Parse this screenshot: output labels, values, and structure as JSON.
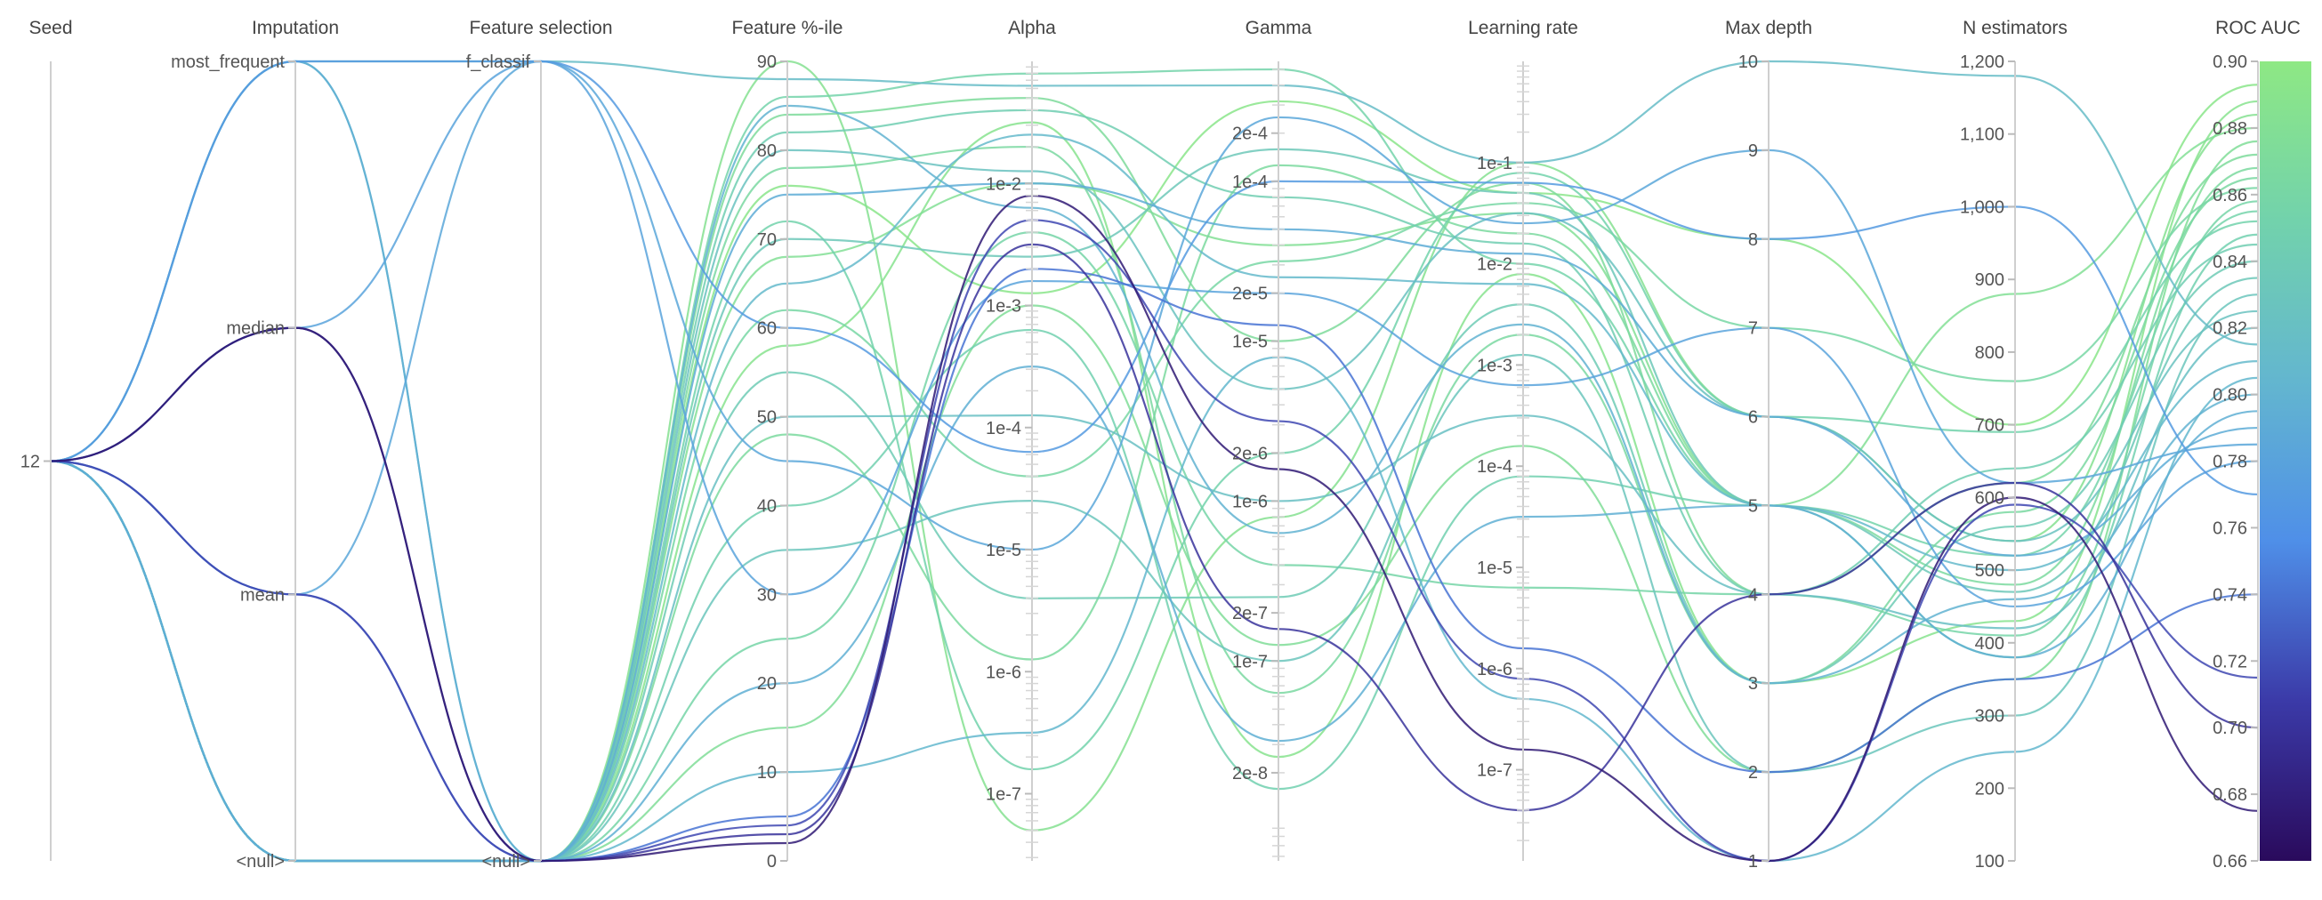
{
  "chart_data": {
    "type": "parallel_coordinates",
    "axes": [
      {
        "key": "seed",
        "title": "Seed",
        "kind": "cat",
        "ticks": [
          {
            "label": "12",
            "v": 0.5
          }
        ]
      },
      {
        "key": "imputation",
        "title": "Imputation",
        "kind": "cat",
        "ticks": [
          {
            "label": "most_frequent",
            "v": 1.0
          },
          {
            "label": "median",
            "v": 0.6667
          },
          {
            "label": "mean",
            "v": 0.3333
          },
          {
            "label": "<null>",
            "v": 0.0
          }
        ]
      },
      {
        "key": "feature_selection",
        "title": "Feature selection",
        "kind": "cat",
        "ticks": [
          {
            "label": "f_classif",
            "v": 1.0
          },
          {
            "label": "<null>",
            "v": 0.0
          }
        ]
      },
      {
        "key": "feature_pct",
        "title": "Feature %-ile",
        "kind": "lin",
        "range": [
          0,
          90
        ],
        "ticks": [
          "0",
          "10",
          "20",
          "30",
          "40",
          "50",
          "60",
          "70",
          "80",
          "90"
        ]
      },
      {
        "key": "alpha",
        "title": "Alpha",
        "kind": "log",
        "range": [
          -7.55,
          -1.0
        ],
        "ticks": [
          {
            "label": "1e-2",
            "exp": -2
          },
          {
            "label": "1e-3",
            "exp": -3
          },
          {
            "label": "1e-4",
            "exp": -4
          },
          {
            "label": "1e-5",
            "exp": -5
          },
          {
            "label": "1e-6",
            "exp": -6
          },
          {
            "label": "1e-7",
            "exp": -7
          }
        ]
      },
      {
        "key": "gamma",
        "title": "Gamma",
        "kind": "log",
        "range": [
          -8.25,
          -3.25
        ],
        "ticks": [
          {
            "label": "2e-4",
            "exp": -3.699
          },
          {
            "label": "1e-4",
            "exp": -4
          },
          {
            "label": "2e-5",
            "exp": -4.699
          },
          {
            "label": "1e-5",
            "exp": -5
          },
          {
            "label": "2e-6",
            "exp": -5.699
          },
          {
            "label": "1e-6",
            "exp": -6
          },
          {
            "label": "2e-7",
            "exp": -6.699
          },
          {
            "label": "1e-7",
            "exp": -7
          },
          {
            "label": "2e-8",
            "exp": -7.699
          }
        ]
      },
      {
        "key": "learning_rate",
        "title": "Learning rate",
        "kind": "log",
        "range": [
          -7.9,
          0.0
        ],
        "ticks": [
          {
            "label": "1e-1",
            "exp": -1
          },
          {
            "label": "1e-2",
            "exp": -2
          },
          {
            "label": "1e-3",
            "exp": -3
          },
          {
            "label": "1e-4",
            "exp": -4
          },
          {
            "label": "1e-5",
            "exp": -5
          },
          {
            "label": "1e-6",
            "exp": -6
          },
          {
            "label": "1e-7",
            "exp": -7
          }
        ]
      },
      {
        "key": "max_depth",
        "title": "Max depth",
        "kind": "lin",
        "range": [
          1,
          10
        ],
        "ticks": [
          "1",
          "2",
          "3",
          "4",
          "5",
          "6",
          "7",
          "8",
          "9",
          "10"
        ]
      },
      {
        "key": "n_estimators",
        "title": "N estimators",
        "kind": "lin",
        "range": [
          100,
          1200
        ],
        "ticks": [
          "100",
          "200",
          "300",
          "400",
          "500",
          "600",
          "700",
          "800",
          "900",
          "1,000",
          "1,100",
          "1,200"
        ]
      },
      {
        "key": "roc_auc",
        "title": "ROC AUC",
        "kind": "lin",
        "range": [
          0.66,
          0.9
        ],
        "ticks": [
          "0.66",
          "0.68",
          "0.70",
          "0.72",
          "0.74",
          "0.76",
          "0.78",
          "0.80",
          "0.82",
          "0.84",
          "0.86",
          "0.88",
          "0.90"
        ]
      }
    ],
    "color_scale": {
      "metric": "roc_auc",
      "min": 0.66,
      "max": 0.9,
      "stops": [
        "#2a0a5c",
        "#3b3aa8",
        "#4f8fe8",
        "#63b6cf",
        "#72d2ac",
        "#8ee884"
      ]
    },
    "runs": [
      [
        12,
        "median",
        "<null>",
        2,
        -2.1,
        -5.8,
        -6.8,
        1,
        600,
        0.675
      ],
      [
        12,
        "median",
        "<null>",
        3,
        -2.5,
        -6.8,
        -7.4,
        4,
        620,
        0.7
      ],
      [
        12,
        "mean",
        "<null>",
        4,
        -2.3,
        -5.5,
        -6.1,
        1,
        590,
        0.715
      ],
      [
        12,
        "mean",
        "<null>",
        5,
        -2.7,
        -4.9,
        -5.8,
        2,
        350,
        0.74
      ],
      [
        12,
        "most_frequent",
        "f_classif",
        60,
        -4.2,
        -4.0,
        -1.2,
        8,
        1000,
        0.77
      ],
      [
        12,
        "median",
        "f_classif",
        30,
        -2.8,
        -4.7,
        -3.2,
        7,
        450,
        0.78
      ],
      [
        12,
        "<null>",
        "<null>",
        75,
        -2.0,
        -4.3,
        -1.9,
        6,
        520,
        0.79
      ],
      [
        12,
        "mean",
        "f_classif",
        45,
        -5.0,
        -3.6,
        -1.6,
        9,
        620,
        0.785
      ],
      [
        12,
        "most_frequent",
        "<null>",
        20,
        -3.5,
        -7.5,
        -4.5,
        5,
        380,
        0.795
      ],
      [
        12,
        "<null>",
        "<null>",
        85,
        -2.2,
        -6.2,
        -2.6,
        3,
        460,
        0.8
      ],
      [
        12,
        "most_frequent",
        "<null>",
        10,
        -6.5,
        -5.1,
        -6.3,
        1,
        250,
        0.805
      ],
      [
        12,
        "<null>",
        "<null>",
        65,
        -1.6,
        -4.6,
        -2.2,
        5,
        500,
        0.81
      ],
      [
        12,
        "most_frequent",
        "f_classif",
        88,
        -1.2,
        -3.4,
        -1.0,
        10,
        1180,
        0.815
      ],
      [
        12,
        "<null>",
        "<null>",
        50,
        -3.9,
        -6.0,
        -3.5,
        4,
        420,
        0.82
      ],
      [
        12,
        "<null>",
        "<null>",
        80,
        -1.9,
        -5.3,
        -1.5,
        6,
        540,
        0.825
      ],
      [
        12,
        "<null>",
        "<null>",
        35,
        -4.6,
        -7.0,
        -2.9,
        2,
        300,
        0.83
      ],
      [
        12,
        "<null>",
        "<null>",
        70,
        -2.6,
        -3.8,
        -1.3,
        5,
        470,
        0.835
      ],
      [
        12,
        "<null>",
        "<null>",
        55,
        -5.4,
        -6.6,
        -2.4,
        3,
        560,
        0.84
      ],
      [
        12,
        "<null>",
        "<null>",
        82,
        -1.4,
        -4.1,
        -1.8,
        4,
        640,
        0.845
      ],
      [
        12,
        "<null>",
        "<null>",
        40,
        -3.2,
        -7.8,
        -4.1,
        5,
        380,
        0.848
      ],
      [
        12,
        "<null>",
        "<null>",
        72,
        -6.8,
        -5.7,
        -1.1,
        6,
        690,
        0.852
      ],
      [
        12,
        "<null>",
        "<null>",
        86,
        -1.1,
        -3.3,
        -2.0,
        5,
        520,
        0.855
      ],
      [
        12,
        "<null>",
        "<null>",
        25,
        -2.4,
        -6.4,
        -5.2,
        4,
        410,
        0.858
      ],
      [
        12,
        "<null>",
        "<null>",
        62,
        -4.4,
        -4.5,
        -1.4,
        7,
        760,
        0.862
      ],
      [
        12,
        "<null>",
        "<null>",
        78,
        -1.7,
        -7.2,
        -2.7,
        3,
        580,
        0.865
      ],
      [
        12,
        "<null>",
        "<null>",
        48,
        -5.9,
        -3.9,
        -1.7,
        5,
        480,
        0.868
      ],
      [
        12,
        "<null>",
        "<null>",
        84,
        -1.3,
        -5.0,
        -1.2,
        4,
        620,
        0.872
      ],
      [
        12,
        "<null>",
        "<null>",
        15,
        -3.0,
        -6.9,
        -3.8,
        2,
        350,
        0.876
      ],
      [
        12,
        "<null>",
        "<null>",
        68,
        -2.0,
        -4.4,
        -1.5,
        5,
        880,
        0.88
      ],
      [
        12,
        "<null>",
        "<null>",
        90,
        -7.3,
        -6.1,
        -1.0,
        6,
        540,
        0.884
      ],
      [
        12,
        "<null>",
        "<null>",
        58,
        -1.5,
        -7.6,
        -2.1,
        3,
        430,
        0.888
      ],
      [
        12,
        "<null>",
        "<null>",
        76,
        -2.9,
        -3.5,
        -1.3,
        8,
        700,
        0.893
      ]
    ]
  }
}
